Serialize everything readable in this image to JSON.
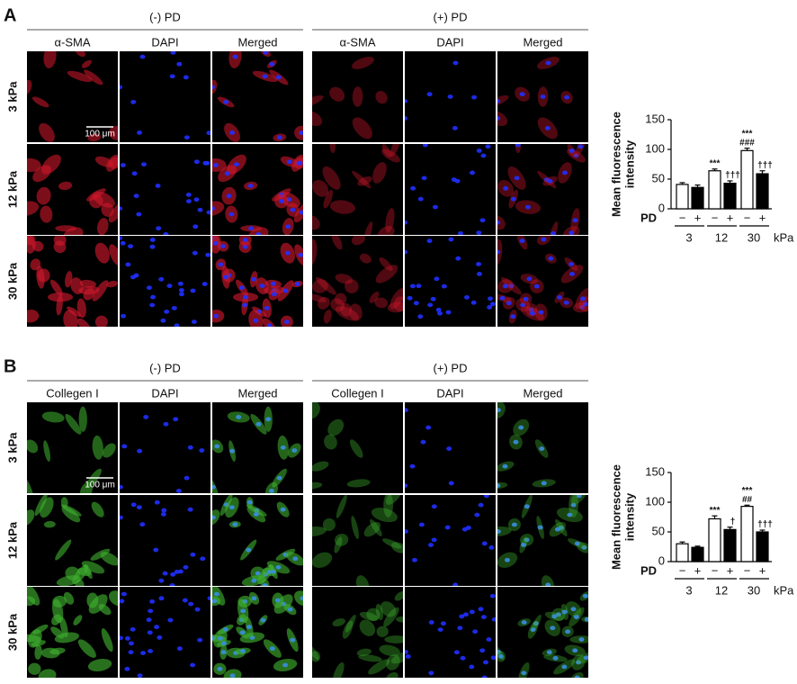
{
  "panels": [
    {
      "label": "A",
      "groups": [
        {
          "title": "(-) PD",
          "columns": [
            "α-SMA",
            "DAPI",
            "Merged"
          ]
        },
        {
          "title": "(+) PD",
          "columns": [
            "α-SMA",
            "DAPI",
            "Merged"
          ]
        }
      ],
      "rows": [
        "3 kPa",
        "12 kPa",
        "30 kPa"
      ],
      "scale_bar": "100 μm"
    },
    {
      "label": "B",
      "groups": [
        {
          "title": "(-) PD",
          "columns": [
            "Collegen I",
            "DAPI",
            "Merged"
          ]
        },
        {
          "title": "(+) PD",
          "columns": [
            "Collegen I",
            "DAPI",
            "Merged"
          ]
        }
      ],
      "rows": [
        "3 kPa",
        "12 kPa",
        "30 kPa"
      ],
      "scale_bar": "100 μm"
    }
  ],
  "chart_data": [
    {
      "type": "bar",
      "y_label": [
        "Mean fluorescence",
        "intensity"
      ],
      "group_label": "PD",
      "unit": "kPa",
      "categories": [
        "3",
        "12",
        "30"
      ],
      "ylim": [
        0,
        150
      ],
      "yticks": [
        0,
        50,
        100,
        150
      ],
      "series": [
        {
          "name": "−",
          "color": "#ffffff",
          "values": [
            41,
            64,
            98
          ],
          "errors": [
            3,
            3,
            4
          ],
          "annotations": [
            null,
            [
              "***"
            ],
            [
              "***",
              "###"
            ]
          ]
        },
        {
          "name": "+",
          "color": "#000000",
          "values": [
            36,
            43,
            59
          ],
          "errors": [
            4,
            4,
            5
          ],
          "annotations": [
            null,
            [
              "†††"
            ],
            [
              "†††"
            ]
          ]
        }
      ]
    },
    {
      "type": "bar",
      "y_label": [
        "Mean fluorescence",
        "intensity"
      ],
      "group_label": "PD",
      "unit": "kPa",
      "categories": [
        "3",
        "12",
        "30"
      ],
      "ylim": [
        0,
        150
      ],
      "yticks": [
        0,
        50,
        100,
        150
      ],
      "series": [
        {
          "name": "−",
          "color": "#ffffff",
          "values": [
            30,
            72,
            93
          ],
          "errors": [
            3,
            5,
            2
          ],
          "annotations": [
            null,
            [
              "***"
            ],
            [
              "***",
              "##"
            ]
          ]
        },
        {
          "name": "+",
          "color": "#000000",
          "values": [
            24,
            54,
            50
          ],
          "errors": [
            2,
            4,
            3
          ],
          "annotations": [
            null,
            [
              "†"
            ],
            [
              "†††"
            ]
          ]
        }
      ]
    }
  ]
}
